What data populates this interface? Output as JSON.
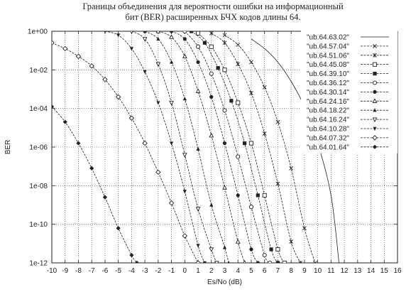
{
  "chart_data": {
    "type": "line",
    "title": [
      "Границы объединения для вероятности ошибки на информационный",
      "бит (BER) расширенных БЧХ кодов длины 64."
    ],
    "xlabel": "Es/No (dB)",
    "ylabel": "BER",
    "xlim": [
      -10,
      16
    ],
    "ylim_log10": [
      -12,
      0
    ],
    "y_scale": "log",
    "xticks": [
      "-10",
      "-9",
      "-8",
      "-7",
      "-6",
      "-5",
      "-4",
      "-3",
      "-2",
      "-1",
      "0",
      "1",
      "2",
      "3",
      "4",
      "5",
      "6",
      "7",
      "8",
      "9",
      "10",
      "11",
      "12",
      "13",
      "14",
      "15",
      "16"
    ],
    "yticks": [
      "1e+00",
      "1e-02",
      "1e-04",
      "1e-06",
      "1e-08",
      "1e-10",
      "1e-12"
    ],
    "grid": true,
    "legend_position": "top-right",
    "series": [
      {
        "name": "\"ub.64.63.02\"",
        "marker": "line",
        "x": [
          5,
          6,
          7,
          8,
          9,
          10,
          11,
          11.6
        ],
        "y": [
          -0.4,
          -0.9,
          -1.6,
          -2.6,
          -3.9,
          -5.8,
          -8.5,
          -12
        ]
      },
      {
        "name": "\"ub.64.57.04\"",
        "marker": "x",
        "x": [
          3,
          4,
          5,
          6,
          7,
          8,
          9,
          9.8
        ],
        "y": [
          -0.2,
          -0.7,
          -1.6,
          -2.9,
          -4.7,
          -7.1,
          -10.2,
          -12
        ]
      },
      {
        "name": "\"ub.64.51.06\"",
        "marker": "asterisk",
        "x": [
          2,
          3,
          4,
          5,
          6,
          7,
          8,
          8.7
        ],
        "y": [
          -0.1,
          -0.6,
          -1.7,
          -3.2,
          -5.3,
          -7.9,
          -10.9,
          -12
        ]
      },
      {
        "name": "\"ub.64.45.08\"",
        "marker": "open-square",
        "x": [
          1,
          2,
          3,
          4,
          5,
          6,
          7,
          7.5
        ],
        "y": [
          -0.1,
          -0.8,
          -2.0,
          -3.7,
          -5.8,
          -8.5,
          -11.3,
          -12
        ]
      },
      {
        "name": "\"ub.64.39.10\"",
        "marker": "filled-square",
        "x": [
          0.5,
          1.5,
          2.5,
          3.5,
          4.5,
          5.5,
          6.5,
          7.0
        ],
        "y": [
          0,
          -0.6,
          -1.9,
          -3.6,
          -5.8,
          -8.5,
          -11.3,
          -12
        ]
      },
      {
        "name": "\"ub.64.36.12\"",
        "marker": "open-circle",
        "x": [
          0,
          1,
          2,
          3,
          4,
          5,
          6,
          6.4
        ],
        "y": [
          0,
          -0.8,
          -2.2,
          -4.1,
          -6.5,
          -9.1,
          -11.6,
          -12
        ]
      },
      {
        "name": "\"ub.64.30.14\"",
        "marker": "filled-circle",
        "x": [
          -1,
          0,
          1,
          2,
          3,
          4,
          5,
          5.5
        ],
        "y": [
          0,
          -0.4,
          -1.6,
          -3.4,
          -5.8,
          -8.5,
          -11.3,
          -12
        ]
      },
      {
        "name": "\"ub.64.24.16\"",
        "marker": "open-triangle",
        "x": [
          -2,
          -1,
          0,
          1,
          2,
          3,
          4,
          4.5
        ],
        "y": [
          0,
          -0.3,
          -1.3,
          -3.1,
          -5.4,
          -8.1,
          -10.9,
          -12
        ]
      },
      {
        "name": "\"ub.64.18.22\"",
        "marker": "filled-triangle",
        "x": [
          -3,
          -2,
          -1,
          0,
          1,
          2,
          3,
          3.3
        ],
        "y": [
          0,
          -0.4,
          -1.6,
          -3.5,
          -6.1,
          -9.0,
          -11.2,
          -12
        ]
      },
      {
        "name": "\"ub.64.16.24\"",
        "marker": "open-inverted-triangle",
        "x": [
          -4,
          -3,
          -2,
          -1,
          0,
          1,
          2,
          2.4
        ],
        "y": [
          0,
          -0.4,
          -1.7,
          -3.7,
          -6.4,
          -9.2,
          -11.3,
          -12
        ]
      },
      {
        "name": "\"ub.64.10.28\"",
        "marker": "filled-inverted-triangle",
        "x": [
          -6,
          -5,
          -4,
          -3,
          -2,
          -1,
          0,
          1,
          1.5
        ],
        "y": [
          0,
          -0.2,
          -0.9,
          -2.1,
          -3.7,
          -5.8,
          -8.3,
          -11.1,
          -12
        ]
      },
      {
        "name": "\"ub.64.07.32\"",
        "marker": "open-diamond",
        "x": [
          -10,
          -9,
          -8,
          -7,
          -6,
          -5,
          -4,
          -3,
          -2,
          -1,
          0,
          1
        ],
        "y": [
          -0.6,
          -0.9,
          -1.3,
          -1.8,
          -2.5,
          -3.4,
          -4.5,
          -5.8,
          -7.3,
          -8.9,
          -10.6,
          -12
        ]
      },
      {
        "name": "\"ub.64.01.64\"",
        "marker": "filled-diamond",
        "x": [
          -10,
          -9,
          -8,
          -7,
          -6,
          -5,
          -4,
          -3.6
        ],
        "y": [
          -3.9,
          -4.7,
          -5.8,
          -7.1,
          -8.6,
          -10.2,
          -11.6,
          -12
        ]
      }
    ]
  }
}
